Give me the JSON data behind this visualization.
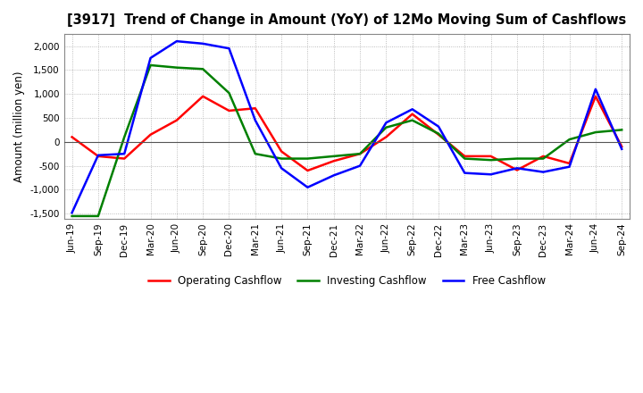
{
  "title": "[3917]  Trend of Change in Amount (YoY) of 12Mo Moving Sum of Cashflows",
  "ylabel": "Amount (million yen)",
  "x_labels": [
    "Jun-19",
    "Sep-19",
    "Dec-19",
    "Mar-20",
    "Jun-20",
    "Sep-20",
    "Dec-20",
    "Mar-21",
    "Jun-21",
    "Sep-21",
    "Dec-21",
    "Mar-22",
    "Jun-22",
    "Sep-22",
    "Dec-22",
    "Mar-23",
    "Jun-23",
    "Sep-23",
    "Dec-23",
    "Mar-24",
    "Jun-24",
    "Sep-24"
  ],
  "operating": [
    100,
    -300,
    -350,
    150,
    450,
    950,
    650,
    700,
    -200,
    -600,
    -400,
    -250,
    100,
    580,
    150,
    -300,
    -300,
    -590,
    -300,
    -450,
    950,
    -100
  ],
  "investing": [
    -1550,
    -1550,
    100,
    1600,
    1550,
    1520,
    1020,
    -250,
    -350,
    -350,
    -300,
    -250,
    300,
    450,
    170,
    -350,
    -380,
    -350,
    -350,
    50,
    200,
    250
  ],
  "free": [
    -1480,
    -280,
    -250,
    1750,
    2100,
    2050,
    1950,
    450,
    -550,
    -950,
    -700,
    -500,
    400,
    680,
    320,
    -650,
    -680,
    -550,
    -630,
    -520,
    1100,
    -150
  ],
  "ylim": [
    -1600,
    2250
  ],
  "yticks": [
    -1500,
    -1000,
    -500,
    0,
    500,
    1000,
    1500,
    2000
  ],
  "colors": {
    "operating": "#ff0000",
    "investing": "#008000",
    "free": "#0000ff"
  },
  "legend_labels": [
    "Operating Cashflow",
    "Investing Cashflow",
    "Free Cashflow"
  ],
  "background_color": "#ffffff",
  "grid_color": "#aaaaaa"
}
